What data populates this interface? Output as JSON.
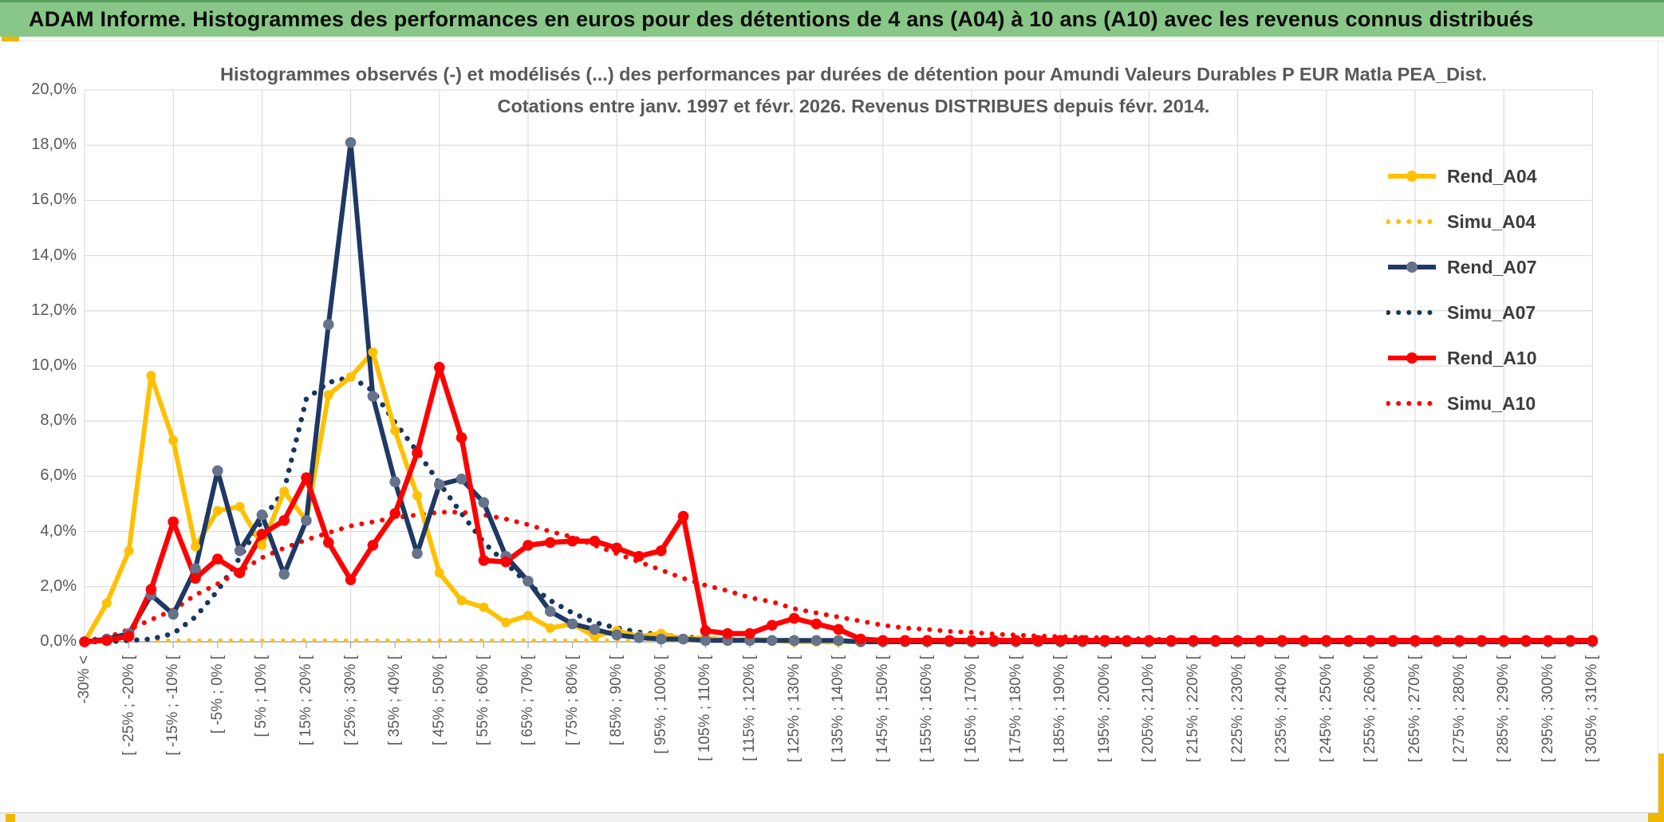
{
  "header": {
    "title": "ADAM Informe. Histogrammes des performances en euros pour des détentions de 4 ans (A04) à 10 ans (A10) avec les revenus connus distribués"
  },
  "chart": {
    "title_line1": "Histogrammes observés (-) et modélisés (...) des performances par durées de détention pour Amundi Valeurs Durables P EUR Matla PEA_Dist.",
    "title_line2": "Cotations entre janv. 1997 et févr. 2026. Revenus DISTRIBUES depuis févr. 2014."
  },
  "legend": {
    "items": [
      {
        "label": "Rend_A04"
      },
      {
        "label": "Simu_A04"
      },
      {
        "label": "Rend_A07"
      },
      {
        "label": "Simu_A07"
      },
      {
        "label": "Rend_A10"
      },
      {
        "label": "Simu_A10"
      }
    ]
  },
  "colors": {
    "header_green": "#88C787",
    "accent_gold": "#EFB700",
    "grid": "#D9D9D9",
    "axis": "#A6A6A6",
    "text_gray": "#595959",
    "gold": "#FFC000",
    "navy": "#1F3864",
    "navy_marker": "#66738B",
    "red": "#FF0000"
  },
  "chart_data": {
    "type": "line",
    "title": "Histogrammes observés (-) et modélisés (...) des performances par durées de détention pour Amundi Valeurs Durables P EUR Matla PEA_Dist. Cotations entre janv. 1997 et févr. 2026. Revenus DISTRIBUES depuis févr. 2014.",
    "ylabel": "",
    "xlabel": "",
    "ylim": [
      0,
      20
    ],
    "grid": true,
    "legend_position": "right",
    "ytick_labels": [
      "0,0%",
      "2,0%",
      "4,0%",
      "6,0%",
      "8,0%",
      "10,0%",
      "12,0%",
      "14,0%",
      "16,0%",
      "18,0%",
      "20,0%"
    ],
    "x_axis_labels": [
      "-30% <",
      "[ -25% ; -20% [",
      "[ -15% ; -10% [",
      "[ -5% ; 0% [",
      "[ 5% ; 10% [",
      "[ 15% ; 20% [",
      "[ 25% ; 30% [",
      "[ 35% ; 40% [",
      "[ 45% ; 50% [",
      "[ 55% ; 60% [",
      "[ 65% ; 70% [",
      "[ 75% ; 80% [",
      "[ 85% ; 90% [",
      "[ 95% ; 100% [",
      "[ 105% ; 110% [",
      "[ 115% ; 120% [",
      "[ 125% ; 130% [",
      "[ 135% ; 140% [",
      "[ 145% ; 150% [",
      "[ 155% ; 160% [",
      "[ 165% ; 170% [",
      "[ 175% ; 180% [",
      "[ 185% ; 190% [",
      "[ 195% ; 200% [",
      "[ 205% ; 210% [",
      "[ 215% ; 220% [",
      "[ 225% ; 230% [",
      "[ 235% ; 240% [",
      "[ 245% ; 250% [",
      "[ 255% ; 260% [",
      "[ 265% ; 270% [",
      "[ 275% ; 280% [",
      "[ 285% ; 290% [",
      "[ 295% ; 300% [",
      "[ 305% ; 310% ["
    ],
    "labels_every_n_bins": 2,
    "bin_width_pct": 5,
    "series": [
      {
        "name": "Rend_A04",
        "color": "#FFC000",
        "line": "solid",
        "marker": true,
        "marker_color": "#FFC000",
        "values": [
          0,
          1.4,
          3.3,
          9.65,
          7.3,
          3.45,
          4.75,
          4.9,
          3.5,
          5.45,
          4.4,
          8.95,
          9.6,
          10.5,
          7.65,
          5.3,
          2.5,
          1.5,
          1.25,
          0.7,
          0.95,
          0.5,
          0.65,
          0.2,
          0.4,
          0.2,
          0.3,
          0.1,
          0.15,
          0.05,
          0.1,
          0.05,
          0,
          0,
          0,
          0,
          0,
          0,
          0,
          0,
          0,
          0,
          0,
          0,
          0,
          0,
          0,
          0,
          0,
          0,
          0,
          0,
          0,
          0,
          0,
          0,
          0,
          0,
          0,
          0,
          0,
          0,
          0,
          0,
          0,
          0,
          0,
          0,
          0
        ]
      },
      {
        "name": "Simu_A04",
        "color": "#FFC000",
        "line": "dotted",
        "marker": false,
        "values": [
          0,
          0,
          0.05,
          0.05,
          0.05,
          0.05,
          0.05,
          0.05,
          0.05,
          0.05,
          0.05,
          0.05,
          0.05,
          0.05,
          0.05,
          0.05,
          0.05,
          0.05,
          0.05,
          0.05,
          0.05,
          0.05,
          0.05,
          0.05,
          0.05,
          0.05,
          0.05,
          0.05,
          0.05,
          0.05,
          0.05,
          0,
          0,
          0,
          0,
          0,
          0,
          0,
          0,
          0,
          0,
          0,
          0,
          0,
          0,
          0,
          0,
          0,
          0,
          0,
          0,
          0,
          0,
          0,
          0,
          0,
          0,
          0,
          0,
          0,
          0,
          0,
          0,
          0,
          0,
          0,
          0,
          0,
          0
        ]
      },
      {
        "name": "Rend_A07",
        "color": "#1F3864",
        "line": "solid",
        "marker": true,
        "marker_color": "#66738B",
        "values": [
          0,
          0.1,
          0.3,
          1.7,
          1,
          2.65,
          6.2,
          3.3,
          4.6,
          2.45,
          4.4,
          11.5,
          18.1,
          8.9,
          5.8,
          3.2,
          5.7,
          5.9,
          5.05,
          3.1,
          2.2,
          1.1,
          0.65,
          0.45,
          0.25,
          0.15,
          0.1,
          0.1,
          0.05,
          0.05,
          0.05,
          0.05,
          0.05,
          0.05,
          0.05,
          0,
          0,
          0,
          0,
          0,
          0,
          0,
          0,
          0,
          0,
          0,
          0,
          0,
          0,
          0,
          0,
          0,
          0,
          0,
          0,
          0,
          0,
          0,
          0,
          0,
          0,
          0,
          0,
          0,
          0,
          0,
          0,
          0,
          0
        ]
      },
      {
        "name": "Simu_A07",
        "color": "#17375E",
        "line": "dotted",
        "marker": false,
        "values": [
          0,
          0,
          0.05,
          0.1,
          0.3,
          0.9,
          1.85,
          3.05,
          4.4,
          5.5,
          8.8,
          9.4,
          9.6,
          9.1,
          7.95,
          6.9,
          5.75,
          4.65,
          3.6,
          2.85,
          2.1,
          1.5,
          1.05,
          0.7,
          0.5,
          0.35,
          0.25,
          0.18,
          0.12,
          0.08,
          0.05,
          0.05,
          0.05,
          0,
          0,
          0,
          0,
          0,
          0,
          0,
          0,
          0,
          0,
          0,
          0,
          0,
          0,
          0,
          0,
          0,
          0,
          0,
          0,
          0,
          0,
          0,
          0,
          0,
          0,
          0,
          0,
          0,
          0,
          0,
          0,
          0,
          0,
          0,
          0
        ]
      },
      {
        "name": "Rend_A10",
        "color": "#FF0000",
        "line": "solid",
        "marker": true,
        "marker_color": "#FF0000",
        "values": [
          0,
          0.05,
          0.2,
          1.9,
          4.35,
          2.3,
          3,
          2.5,
          3.9,
          4.4,
          5.95,
          3.6,
          2.25,
          3.5,
          4.65,
          6.85,
          9.95,
          7.4,
          2.95,
          2.9,
          3.5,
          3.6,
          3.65,
          3.65,
          3.4,
          3.1,
          3.3,
          4.55,
          0.4,
          0.3,
          0.3,
          0.6,
          0.85,
          0.65,
          0.45,
          0.1,
          0.05,
          0.05,
          0.05,
          0.05,
          0.05,
          0.05,
          0.05,
          0.05,
          0.05,
          0.05,
          0.05,
          0.05,
          0.05,
          0.05,
          0.05,
          0.05,
          0.05,
          0.05,
          0.05,
          0.05,
          0.05,
          0.05,
          0.05,
          0.05,
          0.05,
          0.05,
          0.05,
          0.05,
          0.05,
          0.05,
          0.05,
          0.05,
          0.05
        ]
      },
      {
        "name": "Simu_A10",
        "color": "#FF0000",
        "line": "dotted",
        "marker": false,
        "values": [
          0.05,
          0.15,
          0.45,
          0.8,
          1.15,
          1.7,
          2.1,
          2.55,
          3.05,
          3.4,
          3.7,
          3.95,
          4.2,
          4.35,
          4.5,
          4.6,
          4.7,
          4.7,
          4.6,
          4.45,
          4.25,
          4,
          3.8,
          3.5,
          3.2,
          2.9,
          2.6,
          2.3,
          2.05,
          1.85,
          1.6,
          1.45,
          1.2,
          1.05,
          0.9,
          0.75,
          0.6,
          0.5,
          0.45,
          0.38,
          0.34,
          0.28,
          0.25,
          0.21,
          0.19,
          0.16,
          0.15,
          0.12,
          0.1,
          0.08,
          0.07,
          0.06,
          0.05,
          0.04,
          0.03,
          0.02,
          0.02,
          0.01,
          0,
          0,
          0,
          0,
          0,
          0,
          0,
          0,
          0,
          0,
          0
        ]
      }
    ]
  }
}
